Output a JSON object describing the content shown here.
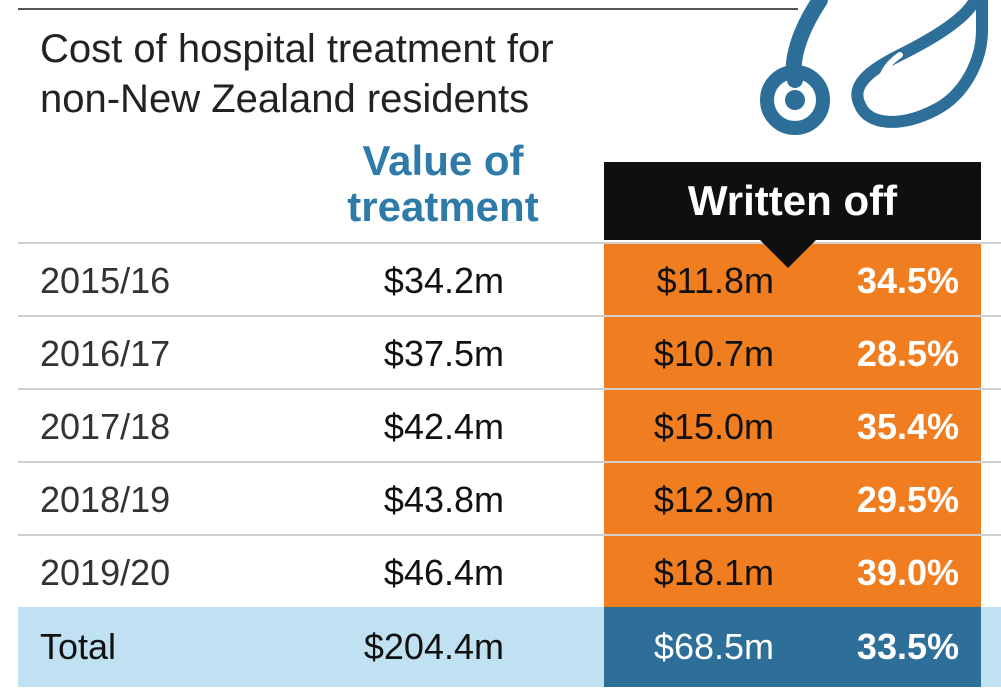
{
  "chart_data": {
    "type": "table",
    "title": "Cost of hospital treatment for non-New Zealand residents",
    "columns": [
      "Value of treatment",
      "Written off"
    ],
    "rows": [
      {
        "year": "2015/16",
        "value": "$34.2m",
        "written_off": "$11.8m",
        "percent": "34.5%"
      },
      {
        "year": "2016/17",
        "value": "$37.5m",
        "written_off": "$10.7m",
        "percent": "28.5%"
      },
      {
        "year": "2017/18",
        "value": "$42.4m",
        "written_off": "$15.0m",
        "percent": "35.4%"
      },
      {
        "year": "2018/19",
        "value": "$43.8m",
        "written_off": "$12.9m",
        "percent": "29.5%"
      },
      {
        "year": "2019/20",
        "value": "$46.4m",
        "written_off": "$18.1m",
        "percent": "39.0%"
      }
    ],
    "total": {
      "label": "Total",
      "value": "$204.4m",
      "written_off": "$68.5m",
      "percent": "33.5%"
    }
  },
  "colors": {
    "value_header": "#2e7aa8",
    "written_off_bg": "#f07e20",
    "header_bg": "#0f0f0f",
    "total_bg": "#bfe1f2",
    "total_written_off_bg": "#2e6f99"
  },
  "icons": {
    "illustration": "stethoscope-icon"
  }
}
